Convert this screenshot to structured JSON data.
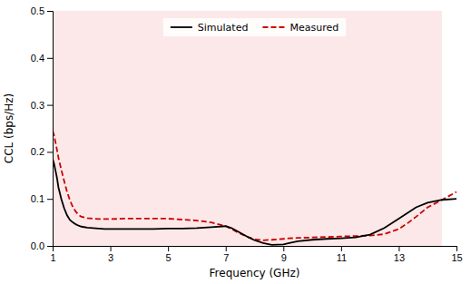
{
  "chart_data": {
    "type": "line",
    "title": "",
    "xlabel": "Frequency (GHz)",
    "ylabel": "CCL (bps/Hz)",
    "x": [
      1.0,
      1.05,
      1.1,
      1.15,
      1.2,
      1.3,
      1.4,
      1.5,
      1.6,
      1.7,
      1.8,
      1.9,
      2.0,
      2.2,
      2.4,
      2.6,
      2.8,
      3.0,
      3.5,
      4.0,
      4.5,
      5.0,
      5.5,
      6.0,
      6.5,
      7.0,
      7.2,
      7.5,
      7.8,
      8.0,
      8.3,
      8.6,
      9.0,
      9.2,
      9.5,
      10.0,
      10.5,
      11.0,
      11.5,
      12.0,
      12.5,
      13.0,
      13.3,
      13.6,
      14.0,
      14.5,
      15.0
    ],
    "series": [
      {
        "name": "Simulated",
        "color": "#000000",
        "line_style": "solid",
        "values": [
          0.185,
          0.175,
          0.16,
          0.145,
          0.125,
          0.1,
          0.08,
          0.065,
          0.055,
          0.05,
          0.046,
          0.043,
          0.041,
          0.039,
          0.038,
          0.037,
          0.036,
          0.036,
          0.036,
          0.036,
          0.036,
          0.037,
          0.037,
          0.038,
          0.04,
          0.042,
          0.038,
          0.028,
          0.018,
          0.012,
          0.006,
          0.002,
          0.003,
          0.006,
          0.01,
          0.013,
          0.015,
          0.016,
          0.018,
          0.024,
          0.038,
          0.058,
          0.07,
          0.082,
          0.092,
          0.098,
          0.1
        ]
      },
      {
        "name": "Measured",
        "color": "#cc0000",
        "line_style": "dashed",
        "values": [
          0.245,
          0.235,
          0.22,
          0.205,
          0.188,
          0.162,
          0.138,
          0.115,
          0.097,
          0.083,
          0.073,
          0.066,
          0.062,
          0.059,
          0.058,
          0.057,
          0.057,
          0.057,
          0.058,
          0.058,
          0.058,
          0.058,
          0.056,
          0.054,
          0.05,
          0.042,
          0.036,
          0.026,
          0.018,
          0.014,
          0.012,
          0.013,
          0.015,
          0.016,
          0.017,
          0.018,
          0.019,
          0.02,
          0.021,
          0.022,
          0.025,
          0.036,
          0.048,
          0.062,
          0.082,
          0.098,
          0.115
        ]
      }
    ],
    "bands": [
      {
        "x": [
          1.0,
          14.5
        ],
        "color": "#fce8e8"
      }
    ],
    "xlim": [
      1,
      15
    ],
    "ylim": [
      0,
      0.5
    ],
    "xticks": [
      1,
      3,
      5,
      7,
      9,
      11,
      13,
      15
    ],
    "yticks": [
      {
        "value": 0,
        "label": "0.0"
      },
      0.1,
      0.2,
      0.3,
      0.4,
      0.5
    ],
    "grid": false,
    "legend": "top"
  }
}
